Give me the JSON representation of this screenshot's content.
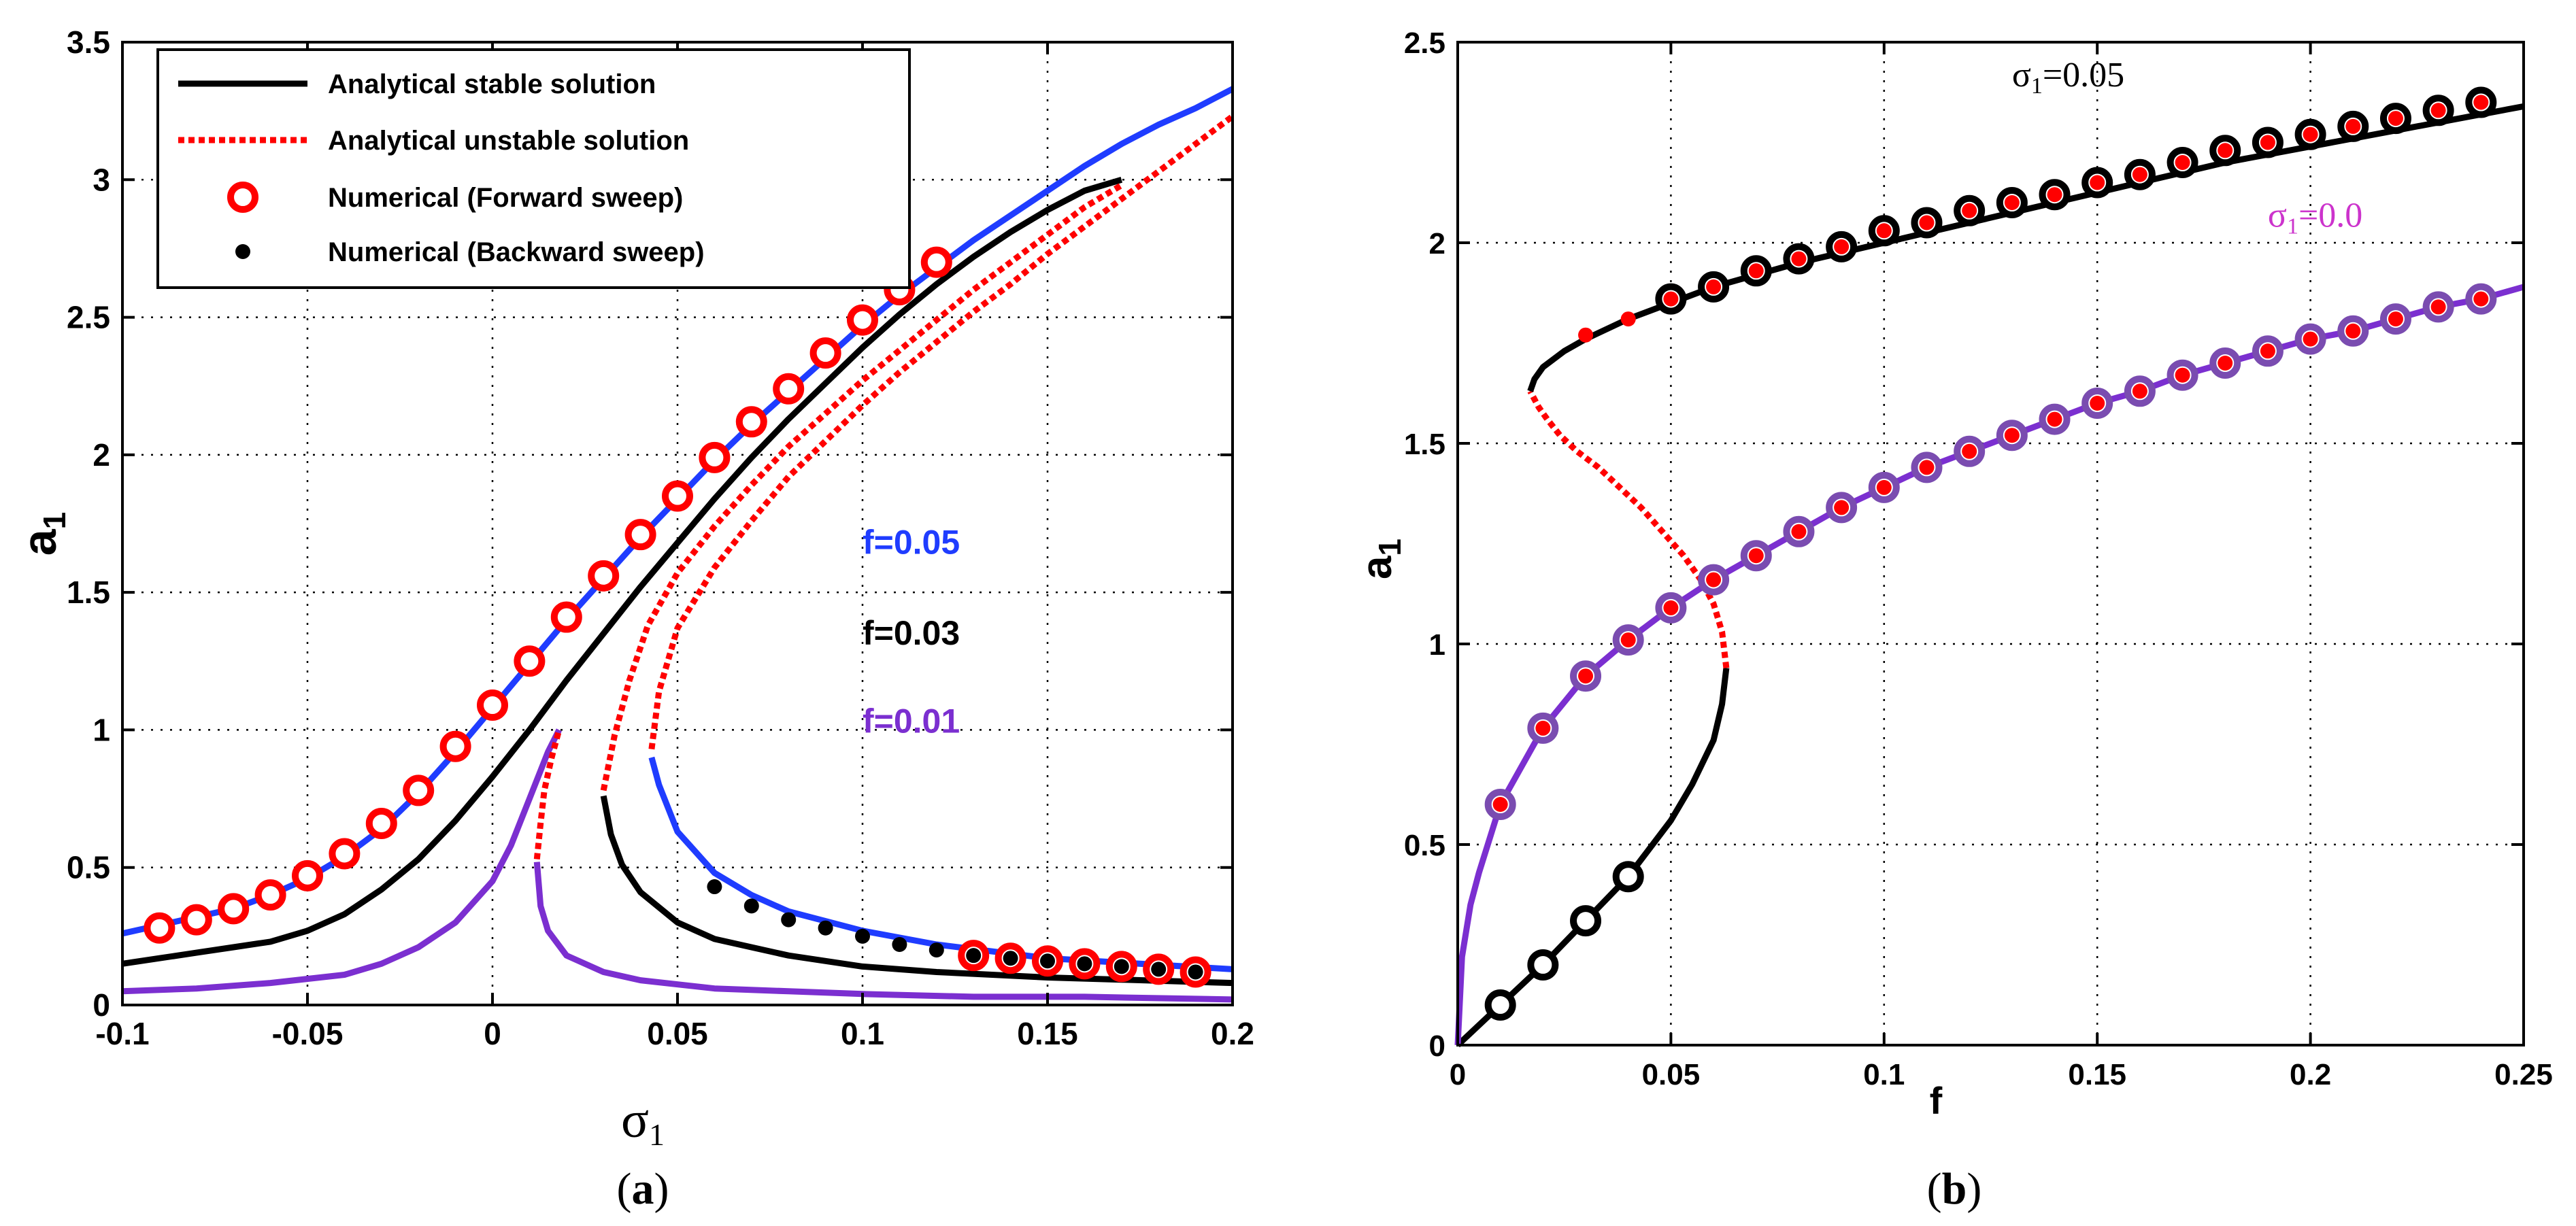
{
  "colors": {
    "stable": "#000000",
    "unstable": "#ff0000",
    "f005": "#1f3cff",
    "f003": "#000000",
    "f001": "#7b2fd0",
    "purple_marker": "#7a4cb0",
    "sigma0_label": "#cc33cc"
  },
  "chart_data": [
    {
      "type": "line",
      "caption_letter": "a",
      "xlabel_symbol": "σ",
      "xlabel_sub": "1",
      "ylabel_symbol": "a",
      "ylabel_sub": "1",
      "xlim": [
        -0.1,
        0.2
      ],
      "ylim": [
        0,
        3.5
      ],
      "grid": true,
      "xticks": [
        -0.1,
        -0.05,
        0,
        0.05,
        0.1,
        0.15,
        0.2
      ],
      "xtick_labels": [
        "-0.1",
        "-0.05",
        "0",
        "0.05",
        "0.1",
        "0.15",
        "0.2"
      ],
      "yticks": [
        0,
        0.5,
        1,
        1.5,
        2,
        2.5,
        3,
        3.5
      ],
      "ytick_labels": [
        "0",
        "0.5",
        "1",
        "1.5",
        "2",
        "2.5",
        "3",
        "3.5"
      ],
      "legend_position": "top-left",
      "legend": [
        {
          "label": "Analytical stable solution",
          "style": "solid"
        },
        {
          "label": "Analytical unstable solution",
          "style": "dotted"
        },
        {
          "label": "Numerical (Forward sweep)",
          "style": "ring"
        },
        {
          "label": "Numerical (Backward sweep)",
          "style": "dot"
        }
      ],
      "annotations": [
        {
          "text": "f=0.05",
          "color": "#1f3cff",
          "x": 0.1,
          "y": 1.64
        },
        {
          "text": "f=0.03",
          "color": "#000000",
          "x": 0.1,
          "y": 1.31
        },
        {
          "text": "f=0.01",
          "color": "#7b2fd0",
          "x": 0.1,
          "y": 0.99
        }
      ],
      "series": [
        {
          "color": "#1f3cff",
          "style": "solid",
          "x": [
            -0.1,
            -0.09,
            -0.08,
            -0.07,
            -0.06,
            -0.05,
            -0.04,
            -0.03,
            -0.02,
            -0.01,
            0,
            0.01,
            0.02,
            0.03,
            0.04,
            0.05,
            0.06,
            0.07,
            0.08,
            0.09,
            0.1,
            0.11,
            0.12,
            0.13,
            0.14,
            0.15,
            0.16,
            0.17,
            0.18,
            0.19,
            0.2
          ],
          "y": [
            0.26,
            0.29,
            0.32,
            0.35,
            0.4,
            0.46,
            0.54,
            0.64,
            0.77,
            0.92,
            1.08,
            1.24,
            1.4,
            1.55,
            1.7,
            1.84,
            1.98,
            2.11,
            2.23,
            2.35,
            2.47,
            2.58,
            2.68,
            2.78,
            2.87,
            2.96,
            3.05,
            3.13,
            3.2,
            3.26,
            3.33
          ]
        },
        {
          "color": "#1f3cff",
          "style": "solid",
          "x": [
            0.043,
            0.045,
            0.05,
            0.06,
            0.07,
            0.08,
            0.1,
            0.12,
            0.15,
            0.2
          ],
          "y": [
            0.9,
            0.8,
            0.63,
            0.48,
            0.4,
            0.34,
            0.27,
            0.22,
            0.17,
            0.13
          ]
        },
        {
          "color": "#ff0000",
          "style": "dotted",
          "x": [
            0.043,
            0.045,
            0.05,
            0.06,
            0.07,
            0.08,
            0.09,
            0.1,
            0.11,
            0.12,
            0.13,
            0.14,
            0.15,
            0.16,
            0.17,
            0.18,
            0.19,
            0.2
          ],
          "y": [
            0.93,
            1.14,
            1.37,
            1.59,
            1.76,
            1.92,
            2.05,
            2.18,
            2.3,
            2.41,
            2.52,
            2.62,
            2.73,
            2.83,
            2.93,
            3.03,
            3.13,
            3.23
          ]
        },
        {
          "color": "#000000",
          "style": "solid",
          "x": [
            -0.1,
            -0.09,
            -0.08,
            -0.07,
            -0.06,
            -0.05,
            -0.04,
            -0.03,
            -0.02,
            -0.01,
            0,
            0.01,
            0.02,
            0.03,
            0.04,
            0.05,
            0.06,
            0.07,
            0.08,
            0.09,
            0.1,
            0.11,
            0.12,
            0.13,
            0.14,
            0.15,
            0.16,
            0.17
          ],
          "y": [
            0.15,
            0.17,
            0.19,
            0.21,
            0.23,
            0.27,
            0.33,
            0.42,
            0.53,
            0.67,
            0.83,
            1.0,
            1.18,
            1.35,
            1.52,
            1.68,
            1.84,
            1.99,
            2.13,
            2.26,
            2.39,
            2.51,
            2.62,
            2.72,
            2.81,
            2.89,
            2.96,
            3.0
          ]
        },
        {
          "color": "#000000",
          "style": "solid",
          "x": [
            0.03,
            0.032,
            0.035,
            0.04,
            0.05,
            0.06,
            0.08,
            0.1,
            0.12,
            0.15,
            0.2
          ],
          "y": [
            0.76,
            0.62,
            0.51,
            0.41,
            0.3,
            0.24,
            0.18,
            0.14,
            0.12,
            0.1,
            0.08
          ]
        },
        {
          "color": "#ff0000",
          "style": "dotted",
          "x": [
            0.03,
            0.033,
            0.037,
            0.042,
            0.05,
            0.06,
            0.07,
            0.08,
            0.09,
            0.1,
            0.11,
            0.12,
            0.13,
            0.14,
            0.15,
            0.16,
            0.17
          ],
          "y": [
            0.78,
            0.98,
            1.18,
            1.38,
            1.57,
            1.74,
            1.89,
            2.03,
            2.15,
            2.27,
            2.38,
            2.49,
            2.6,
            2.7,
            2.8,
            2.9,
            2.98
          ]
        },
        {
          "color": "#7b2fd0",
          "style": "solid",
          "x": [
            -0.1,
            -0.08,
            -0.06,
            -0.04,
            -0.03,
            -0.02,
            -0.01,
            0,
            0.005,
            0.01,
            0.015,
            0.018
          ],
          "y": [
            0.05,
            0.06,
            0.08,
            0.11,
            0.15,
            0.21,
            0.3,
            0.45,
            0.58,
            0.75,
            0.92,
            1.0
          ]
        },
        {
          "color": "#7b2fd0",
          "style": "solid",
          "x": [
            0.012,
            0.013,
            0.015,
            0.02,
            0.03,
            0.04,
            0.06,
            0.08,
            0.1,
            0.13,
            0.16,
            0.2
          ],
          "y": [
            0.52,
            0.36,
            0.27,
            0.18,
            0.12,
            0.09,
            0.06,
            0.05,
            0.04,
            0.03,
            0.03,
            0.02
          ]
        },
        {
          "color": "#ff0000",
          "style": "dotted",
          "x": [
            0.012,
            0.013,
            0.014,
            0.016,
            0.018
          ],
          "y": [
            0.53,
            0.66,
            0.78,
            0.9,
            1.0
          ]
        },
        {
          "color": "#ff0000",
          "style": "ring",
          "x": [
            -0.09,
            -0.08,
            -0.07,
            -0.06,
            -0.05,
            -0.04,
            -0.03,
            -0.02,
            -0.01,
            0,
            0.01,
            0.02,
            0.03,
            0.04,
            0.05,
            0.06,
            0.07,
            0.08,
            0.09,
            0.1,
            0.11,
            0.12,
            0.13,
            0.14,
            0.15,
            0.16,
            0.17,
            0.18,
            0.19
          ],
          "y": [
            0.28,
            0.31,
            0.35,
            0.4,
            0.47,
            0.55,
            0.66,
            0.78,
            0.94,
            1.09,
            1.25,
            1.41,
            1.56,
            1.71,
            1.85,
            1.99,
            2.12,
            2.24,
            2.37,
            2.49,
            2.6,
            2.7,
            0.18,
            0.17,
            0.16,
            0.15,
            0.14,
            0.13,
            0.12
          ]
        },
        {
          "color": "#000000",
          "style": "dot",
          "x": [
            0.06,
            0.07,
            0.08,
            0.09,
            0.1,
            0.11,
            0.12,
            0.13,
            0.14,
            0.15,
            0.16,
            0.17,
            0.18,
            0.19
          ],
          "y": [
            0.43,
            0.36,
            0.31,
            0.28,
            0.25,
            0.22,
            0.2,
            0.18,
            0.17,
            0.16,
            0.15,
            0.14,
            0.13,
            0.12
          ]
        }
      ]
    },
    {
      "type": "line",
      "caption_letter": "b",
      "xlabel": "f",
      "ylabel_symbol": "a",
      "ylabel_sub": "1",
      "xlim": [
        0,
        0.25
      ],
      "ylim": [
        0,
        2.5
      ],
      "grid": true,
      "xticks": [
        0,
        0.05,
        0.1,
        0.15,
        0.2,
        0.25
      ],
      "xtick_labels": [
        "0",
        "0.05",
        "0.1",
        "0.15",
        "0.2",
        "0.25"
      ],
      "yticks": [
        0,
        0.5,
        1,
        1.5,
        2,
        2.5
      ],
      "ytick_labels": [
        "0",
        "0.5",
        "1",
        "1.5",
        "2",
        "2.5"
      ],
      "annotations": [
        {
          "symbol": "σ",
          "sub": "1",
          "text": "=0.05",
          "color": "#000000",
          "x": 0.13,
          "y": 2.39
        },
        {
          "symbol": "σ",
          "sub": "1",
          "text": "=0.0",
          "color": "#cc33cc",
          "x": 0.19,
          "y": 2.04
        }
      ],
      "series": [
        {
          "color": "#000000",
          "style": "solid",
          "x": [
            0,
            0.01,
            0.02,
            0.03,
            0.04,
            0.05,
            0.055,
            0.06,
            0.062,
            0.063
          ],
          "y": [
            0,
            0.1,
            0.2,
            0.31,
            0.42,
            0.56,
            0.65,
            0.76,
            0.85,
            0.94
          ]
        },
        {
          "color": "#ff0000",
          "style": "dotted",
          "x": [
            0.063,
            0.062,
            0.06,
            0.057,
            0.053,
            0.048,
            0.043,
            0.038,
            0.033,
            0.028,
            0.024,
            0.021,
            0.019,
            0.018,
            0.017
          ],
          "y": [
            0.94,
            1.03,
            1.1,
            1.16,
            1.22,
            1.28,
            1.34,
            1.39,
            1.44,
            1.48,
            1.52,
            1.56,
            1.59,
            1.61,
            1.63
          ]
        },
        {
          "color": "#000000",
          "style": "solid",
          "x": [
            0.017,
            0.018,
            0.02,
            0.025,
            0.03,
            0.04,
            0.05,
            0.06,
            0.08,
            0.1,
            0.12,
            0.14,
            0.16,
            0.18,
            0.2,
            0.22,
            0.24,
            0.25
          ],
          "y": [
            1.63,
            1.66,
            1.69,
            1.73,
            1.76,
            1.81,
            1.85,
            1.89,
            1.95,
            2.0,
            2.05,
            2.1,
            2.15,
            2.2,
            2.24,
            2.28,
            2.32,
            2.34
          ]
        },
        {
          "color": "#7b2fd0",
          "style": "solid",
          "x": [
            0,
            0.001,
            0.003,
            0.005,
            0.01,
            0.02,
            0.03,
            0.04,
            0.05,
            0.06,
            0.07,
            0.08,
            0.09,
            0.1,
            0.11,
            0.12,
            0.13,
            0.14,
            0.15,
            0.16,
            0.17,
            0.18,
            0.19,
            0.2,
            0.21,
            0.22,
            0.23,
            0.24,
            0.25
          ],
          "y": [
            0,
            0.22,
            0.35,
            0.43,
            0.6,
            0.79,
            0.92,
            1.01,
            1.09,
            1.16,
            1.22,
            1.28,
            1.34,
            1.39,
            1.44,
            1.48,
            1.52,
            1.56,
            1.6,
            1.63,
            1.67,
            1.7,
            1.73,
            1.76,
            1.78,
            1.81,
            1.84,
            1.86,
            1.89
          ]
        },
        {
          "color": "#000000",
          "style": "ring",
          "x": [
            0.01,
            0.02,
            0.03,
            0.04,
            0.05,
            0.06,
            0.07,
            0.08,
            0.09,
            0.1,
            0.11,
            0.12,
            0.13,
            0.14,
            0.15,
            0.16,
            0.17,
            0.18,
            0.19,
            0.2,
            0.21,
            0.22,
            0.23,
            0.24
          ],
          "y": [
            0.1,
            0.2,
            0.31,
            0.42,
            1.86,
            1.89,
            1.93,
            1.96,
            1.99,
            2.03,
            2.05,
            2.08,
            2.1,
            2.12,
            2.15,
            2.17,
            2.2,
            2.23,
            2.25,
            2.27,
            2.29,
            2.31,
            2.33,
            2.35
          ]
        },
        {
          "color": "#ff0000",
          "style": "dot",
          "x": [
            0.03,
            0.04,
            0.05,
            0.06,
            0.07,
            0.08,
            0.09,
            0.1,
            0.11,
            0.12,
            0.13,
            0.14,
            0.15,
            0.16,
            0.17,
            0.18,
            0.19,
            0.2,
            0.21,
            0.22,
            0.23,
            0.24
          ],
          "y": [
            1.77,
            1.81,
            1.86,
            1.89,
            1.93,
            1.96,
            1.99,
            2.03,
            2.05,
            2.08,
            2.1,
            2.12,
            2.15,
            2.17,
            2.2,
            2.23,
            2.25,
            2.27,
            2.29,
            2.31,
            2.33,
            2.35
          ]
        },
        {
          "color": "#7a4cb0",
          "style": "ring",
          "x": [
            0.01,
            0.02,
            0.03,
            0.04,
            0.05,
            0.06,
            0.07,
            0.08,
            0.09,
            0.1,
            0.11,
            0.12,
            0.13,
            0.14,
            0.15,
            0.16,
            0.17,
            0.18,
            0.19,
            0.2,
            0.21,
            0.22,
            0.23,
            0.24
          ],
          "y": [
            0.6,
            0.79,
            0.92,
            1.01,
            1.09,
            1.16,
            1.22,
            1.28,
            1.34,
            1.39,
            1.44,
            1.48,
            1.52,
            1.56,
            1.6,
            1.63,
            1.67,
            1.7,
            1.73,
            1.76,
            1.78,
            1.81,
            1.84,
            1.86
          ]
        },
        {
          "color": "#ff0000",
          "style": "dot",
          "x": [
            0.01,
            0.02,
            0.03,
            0.04,
            0.05,
            0.06,
            0.07,
            0.08,
            0.09,
            0.1,
            0.11,
            0.12,
            0.13,
            0.14,
            0.15,
            0.16,
            0.17,
            0.18,
            0.19,
            0.2,
            0.21,
            0.22,
            0.23,
            0.24
          ],
          "y": [
            0.6,
            0.79,
            0.92,
            1.01,
            1.09,
            1.16,
            1.22,
            1.28,
            1.34,
            1.39,
            1.44,
            1.48,
            1.52,
            1.56,
            1.6,
            1.63,
            1.67,
            1.7,
            1.73,
            1.76,
            1.78,
            1.81,
            1.84,
            1.86
          ]
        }
      ]
    }
  ]
}
